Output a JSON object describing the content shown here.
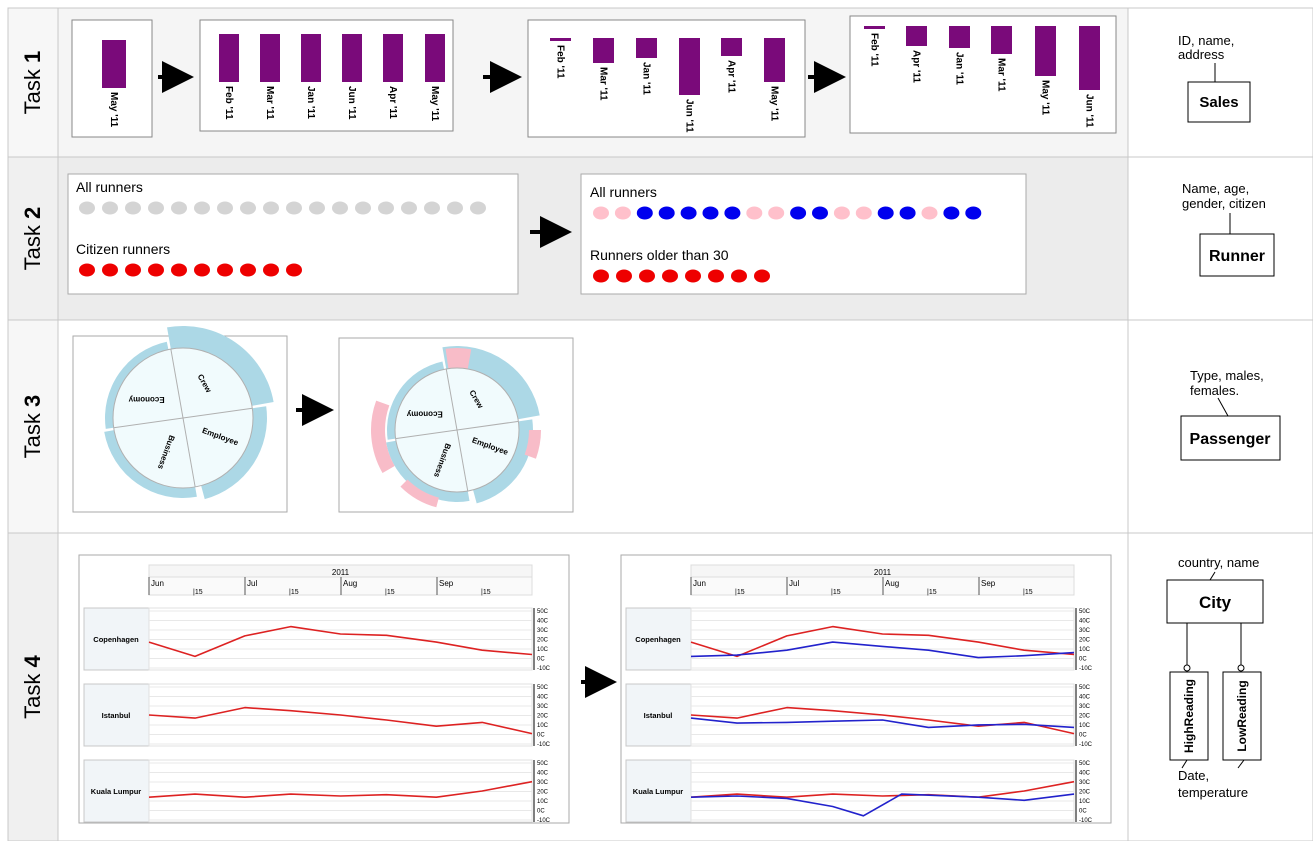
{
  "rows": [
    {
      "label_a": "Task ",
      "label_b": "1"
    },
    {
      "label_a": "Task ",
      "label_b": "2"
    },
    {
      "label_a": "Task ",
      "label_b": "3"
    },
    {
      "label_a": "Task ",
      "label_b": "4"
    }
  ],
  "task1": {
    "panels": [
      {
        "bars": [
          {
            "label": "May '11",
            "value": 48
          }
        ]
      },
      {
        "bars": [
          {
            "label": "Feb '11",
            "value": 48
          },
          {
            "label": "Mar '11",
            "value": 48
          },
          {
            "label": "Jan '11",
            "value": 48
          },
          {
            "label": "Jun '11",
            "value": 48
          },
          {
            "label": "Apr '11",
            "value": 48
          },
          {
            "label": "May '11",
            "value": 48
          }
        ]
      },
      {
        "bars": [
          {
            "label": "Feb '11",
            "value": 3
          },
          {
            "label": "Mar '11",
            "value": 25
          },
          {
            "label": "Jan '11",
            "value": 20
          },
          {
            "label": "Jun '11",
            "value": 57
          },
          {
            "label": "Apr '11",
            "value": 18
          },
          {
            "label": "May '11",
            "value": 44
          }
        ]
      },
      {
        "bars": [
          {
            "label": "Feb '11",
            "value": 3
          },
          {
            "label": "Apr '11",
            "value": 20
          },
          {
            "label": "Jan '11",
            "value": 22
          },
          {
            "label": "Mar '11",
            "value": 28
          },
          {
            "label": "May '11",
            "value": 50
          },
          {
            "label": "Jun '11",
            "value": 64
          }
        ]
      }
    ],
    "bar_color": "#7a0a7a"
  },
  "task2": {
    "left": {
      "all_label": "All runners",
      "citizen_label": "Citizen runners",
      "all_count": 18,
      "citizen_count": 10
    },
    "right": {
      "all_label": "All runners",
      "older_label": "Runners older than 30",
      "colors": [
        "pink",
        "pink",
        "blue",
        "blue",
        "blue",
        "blue",
        "blue",
        "pink",
        "pink",
        "blue",
        "blue",
        "pink",
        "pink",
        "blue",
        "blue",
        "pink",
        "blue",
        "blue"
      ],
      "older_count": 8
    }
  },
  "task3": {
    "sectors": [
      "Crew",
      "Economy",
      "Business",
      "Employee"
    ]
  },
  "task4": {
    "year": "2011",
    "months": [
      "Jun",
      "Jul",
      "Aug",
      "Sep"
    ],
    "tick15": "15",
    "axis_labels": [
      "50C",
      "40C",
      "30C",
      "20C",
      "10C",
      "0C",
      "-10C"
    ],
    "cities": [
      "Copenhagen",
      "Istanbul",
      "Kuala Lumpur"
    ],
    "high_color": "#dd2222",
    "low_color": "#2222cc"
  },
  "schema": {
    "sales": {
      "attrs": "ID, name,\naddress",
      "name": "Sales"
    },
    "runner": {
      "attrs": "Name, age,\ngender, citizen",
      "name": "Runner"
    },
    "passenger": {
      "attrs": "Type, males,\nfemales.",
      "name": "Passenger"
    },
    "city": {
      "attrs": "country, name",
      "name": "City",
      "high": "HighReading",
      "low": "LowReading",
      "reading_attrs": "Date,\ntemperature"
    }
  }
}
